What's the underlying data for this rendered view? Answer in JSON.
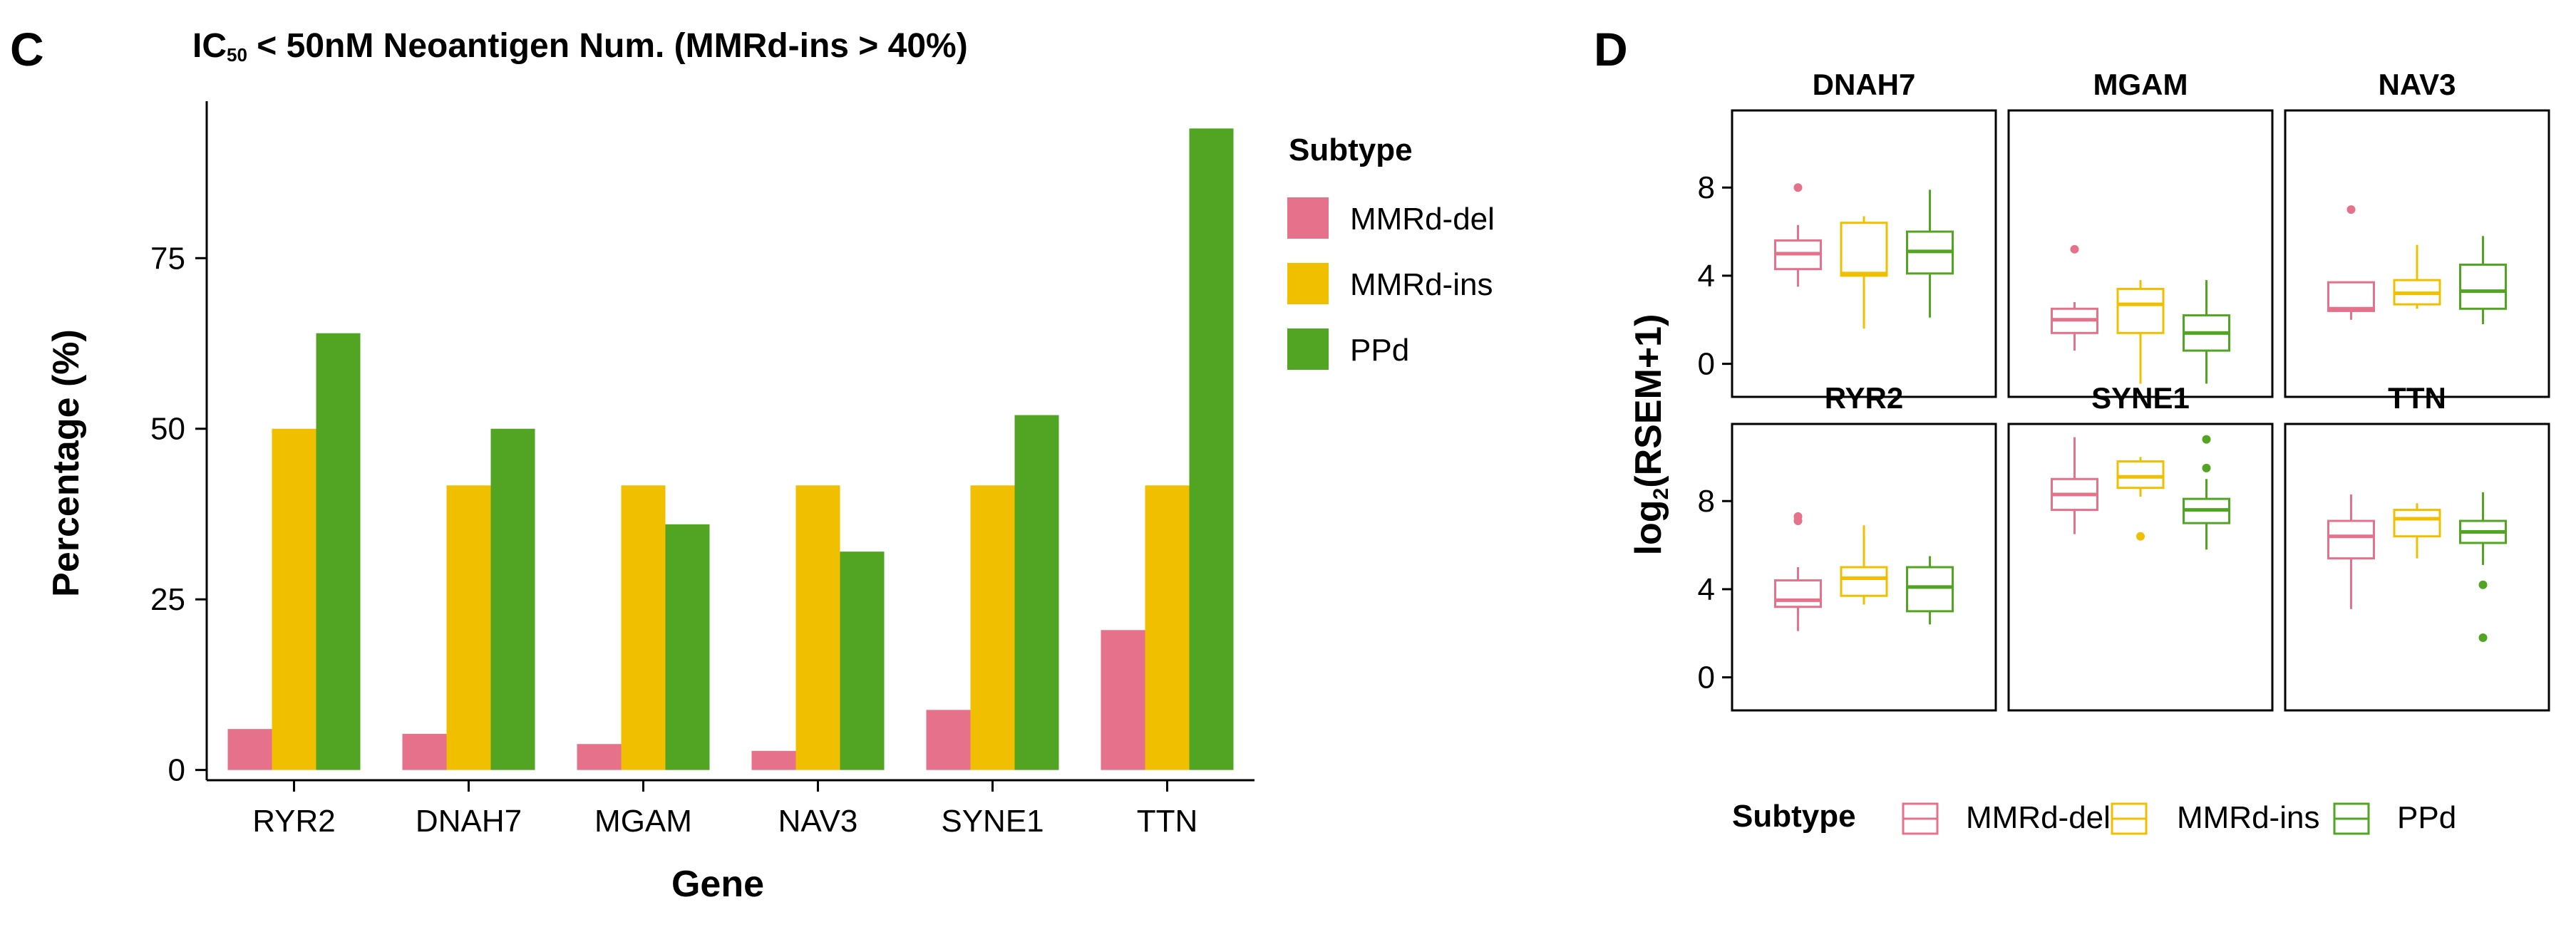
{
  "panel_c_letter": "C",
  "panel_d_letter": "D",
  "colors": {
    "MMRd-del": "#E5718A",
    "MMRd-ins": "#F0C000",
    "PPd": "#52A523"
  },
  "chart_data": [
    {
      "type": "bar",
      "title_main": "IC",
      "title_sub": "50",
      "title_rest": " < 50nM Neoantigen Num. (MMRd-ins > 40%)",
      "xlabel": "Gene",
      "ylabel": "Percentage (%)",
      "categories": [
        "RYR2",
        "DNAH7",
        "MGAM",
        "NAV3",
        "SYNE1",
        "TTN"
      ],
      "series": [
        {
          "name": "MMRd-del",
          "values": [
            6,
            5.3,
            3.8,
            2.8,
            8.8,
            20.5
          ]
        },
        {
          "name": "MMRd-ins",
          "values": [
            50,
            41.7,
            41.7,
            41.7,
            41.7,
            41.7
          ]
        },
        {
          "name": "PPd",
          "values": [
            64,
            50,
            36,
            32,
            52,
            94
          ]
        }
      ],
      "yticks": [
        0,
        25,
        50,
        75
      ],
      "ylim": [
        -1.5,
        98
      ],
      "legend_title": "Subtype",
      "legend": [
        "MMRd-del",
        "MMRd-ins",
        "PPd"
      ]
    },
    {
      "type": "boxplot",
      "ylabel_main": "log",
      "ylabel_sub": "2",
      "ylabel_rest": "(RSEM+1)",
      "yticks": [
        0,
        4,
        8
      ],
      "ylim": [
        -1.5,
        11.5
      ],
      "legend_title": "Subtype",
      "legend": [
        "MMRd-del",
        "MMRd-ins",
        "PPd"
      ],
      "panels": [
        {
          "name": "DNAH7",
          "boxes": [
            {
              "subtype": "MMRd-del",
              "whisker_low": 3.5,
              "q1": 4.3,
              "median": 5.0,
              "q3": 5.6,
              "whisker_high": 6.3,
              "outliers": [
                8.0
              ]
            },
            {
              "subtype": "MMRd-ins",
              "whisker_low": 1.6,
              "q1": 4.0,
              "median": 4.1,
              "q3": 6.4,
              "whisker_high": 6.7,
              "outliers": []
            },
            {
              "subtype": "PPd",
              "whisker_low": 2.1,
              "q1": 4.1,
              "median": 5.1,
              "q3": 6.0,
              "whisker_high": 7.9,
              "outliers": []
            }
          ]
        },
        {
          "name": "MGAM",
          "boxes": [
            {
              "subtype": "MMRd-del",
              "whisker_low": 0.6,
              "q1": 1.4,
              "median": 2.0,
              "q3": 2.5,
              "whisker_high": 2.8,
              "outliers": [
                5.2
              ]
            },
            {
              "subtype": "MMRd-ins",
              "whisker_low": -0.9,
              "q1": 1.4,
              "median": 2.7,
              "q3": 3.4,
              "whisker_high": 3.8,
              "outliers": []
            },
            {
              "subtype": "PPd",
              "whisker_low": -0.9,
              "q1": 0.6,
              "median": 1.4,
              "q3": 2.2,
              "whisker_high": 3.8,
              "outliers": []
            }
          ]
        },
        {
          "name": "NAV3",
          "boxes": [
            {
              "subtype": "MMRd-del",
              "whisker_low": 2.0,
              "q1": 2.4,
              "median": 2.5,
              "q3": 3.7,
              "whisker_high": 3.7,
              "outliers": [
                7.0
              ]
            },
            {
              "subtype": "MMRd-ins",
              "whisker_low": 2.5,
              "q1": 2.7,
              "median": 3.2,
              "q3": 3.8,
              "whisker_high": 5.4,
              "outliers": []
            },
            {
              "subtype": "PPd",
              "whisker_low": 1.8,
              "q1": 2.5,
              "median": 3.3,
              "q3": 4.5,
              "whisker_high": 5.8,
              "outliers": []
            }
          ]
        },
        {
          "name": "RYR2",
          "boxes": [
            {
              "subtype": "MMRd-del",
              "whisker_low": 2.1,
              "q1": 3.2,
              "median": 3.5,
              "q3": 4.4,
              "whisker_high": 5.0,
              "outliers": [
                7.1,
                7.3
              ]
            },
            {
              "subtype": "MMRd-ins",
              "whisker_low": 3.3,
              "q1": 3.7,
              "median": 4.5,
              "q3": 5.0,
              "whisker_high": 6.9,
              "outliers": []
            },
            {
              "subtype": "PPd",
              "whisker_low": 2.4,
              "q1": 3.0,
              "median": 4.1,
              "q3": 5.0,
              "whisker_high": 5.5,
              "outliers": []
            }
          ]
        },
        {
          "name": "SYNE1",
          "boxes": [
            {
              "subtype": "MMRd-del",
              "whisker_low": 6.5,
              "q1": 7.6,
              "median": 8.3,
              "q3": 9.0,
              "whisker_high": 10.9,
              "outliers": []
            },
            {
              "subtype": "MMRd-ins",
              "whisker_low": 8.2,
              "q1": 8.6,
              "median": 9.1,
              "q3": 9.8,
              "whisker_high": 10.0,
              "outliers": [
                6.4
              ]
            },
            {
              "subtype": "PPd",
              "whisker_low": 5.8,
              "q1": 7.0,
              "median": 7.6,
              "q3": 8.1,
              "whisker_high": 9.0,
              "outliers": [
                9.5,
                10.8
              ]
            }
          ]
        },
        {
          "name": "TTN",
          "boxes": [
            {
              "subtype": "MMRd-del",
              "whisker_low": 3.1,
              "q1": 5.4,
              "median": 6.4,
              "q3": 7.1,
              "whisker_high": 8.3,
              "outliers": []
            },
            {
              "subtype": "MMRd-ins",
              "whisker_low": 5.4,
              "q1": 6.4,
              "median": 7.2,
              "q3": 7.6,
              "whisker_high": 7.9,
              "outliers": []
            },
            {
              "subtype": "PPd",
              "whisker_low": 5.1,
              "q1": 6.1,
              "median": 6.6,
              "q3": 7.1,
              "whisker_high": 8.4,
              "outliers": [
                4.2,
                1.8
              ]
            }
          ]
        }
      ]
    }
  ]
}
